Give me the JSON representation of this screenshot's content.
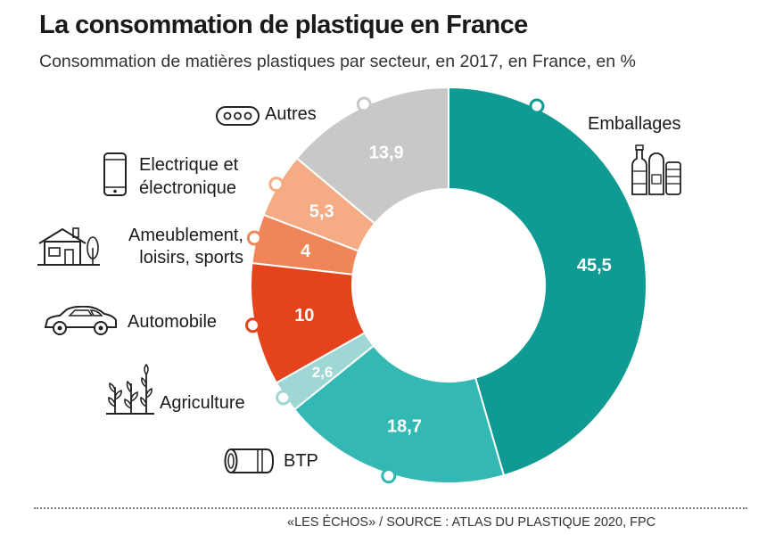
{
  "header": {
    "title": "La consommation de plastique en France",
    "subtitle": "Consommation de matières plastiques par secteur, en 2017, en France, en %"
  },
  "chart_data": {
    "type": "pie",
    "donut": true,
    "title": "La consommation de plastique en France",
    "subtitle": "Consommation de matières plastiques par secteur, en 2017, en France, en %",
    "unit": "%",
    "categories": [
      "Emballages",
      "BTP",
      "Agriculture",
      "Automobile",
      "Ameublement, loisirs, sports",
      "Electrique et électronique",
      "Autres"
    ],
    "values": [
      45.5,
      18.7,
      2.6,
      10,
      4,
      5.3,
      13.9
    ],
    "value_labels": [
      "45,5",
      "18,7",
      "2,6",
      "10",
      "4",
      "5,3",
      "13,9"
    ],
    "colors": [
      "#0f9a93",
      "#33b8b3",
      "#9ed7d3",
      "#e5431c",
      "#f08658",
      "#f5ac85",
      "#c8c8c8"
    ],
    "labels": {
      "emballages": "Emballages",
      "btp": "BTP",
      "agriculture": "Agriculture",
      "automobile": "Automobile",
      "ameublement_line1": "Ameublement,",
      "ameublement_line2": "loisirs, sports",
      "electrique_line1": "Electrique et",
      "electrique_line2": "électronique",
      "autres": "Autres"
    },
    "icons": [
      "bottles-icon",
      "pipe-icon",
      "plants-icon",
      "car-icon",
      "house-icon",
      "smartphone-icon",
      "ellipsis-icon"
    ]
  },
  "footer": {
    "source": "«LES ÉCHOS» / SOURCE : ATLAS DU PLASTIQUE 2020, FPC"
  }
}
